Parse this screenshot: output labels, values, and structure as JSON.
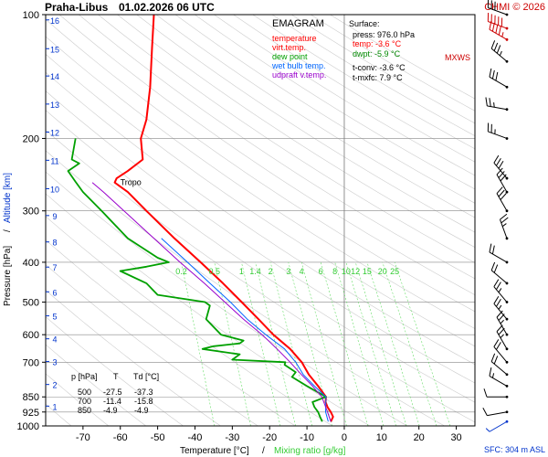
{
  "header": {
    "station": "Praha-Libus",
    "datetime": "01.02.2026 06 UTC",
    "copyright": "CHMI © 2026"
  },
  "legend": {
    "title": "EMAGRAM",
    "items": [
      {
        "label": "temperature",
        "color": "#ff0000"
      },
      {
        "label": "virt.temp.",
        "color": "#ff0000"
      },
      {
        "label": "dew point",
        "color": "#00a000"
      },
      {
        "label": "wet bulb temp.",
        "color": "#0066ff"
      },
      {
        "label": "udpraft v.temp.",
        "color": "#9900cc"
      }
    ]
  },
  "surface": {
    "title": "Surface:",
    "lines": [
      {
        "text": "press: 976.0 hPa",
        "color": "#000000"
      },
      {
        "text": "temp: -3.6 °C",
        "color": "#ff0000"
      },
      {
        "text": "dwpt: -5.9 °C",
        "color": "#008800"
      },
      {
        "text": "t-conv: -3.6 °C",
        "color": "#000000"
      },
      {
        "text": "t-mxfc: 7.9 °C",
        "color": "#000000"
      }
    ]
  },
  "table": {
    "headers": [
      "p [hPa]",
      "T",
      "Td [°C]"
    ],
    "rows": [
      [
        "500",
        "-27.5",
        "-37.3"
      ],
      [
        "700",
        "-11.4",
        "-15.8"
      ],
      [
        "850",
        "-4.9",
        "-4.9"
      ]
    ]
  },
  "labels": {
    "tropo": "Tropo",
    "mxws": "MXWS",
    "sfc": "SFC: 304 m ASL"
  },
  "chart_data": {
    "type": "line",
    "xlabel": "Temperature [°C]",
    "xlabel_sep": "/",
    "xlabel2": "Mixing ratio [g/kg]",
    "ylabel": "Pressure [hPa]",
    "ylabel_sep": "/",
    "ylabel2": "Altitude [km]",
    "xlim": [
      -80,
      35
    ],
    "ylim": [
      1000,
      100
    ],
    "y_scale": "log",
    "x_ticks": [
      -70,
      -60,
      -50,
      -40,
      -30,
      -20,
      -10,
      0,
      10,
      20,
      30
    ],
    "y_ticks": [
      100,
      200,
      300,
      400,
      500,
      600,
      700,
      850,
      925,
      1000
    ],
    "altitude_ticks": [
      {
        "km": 1,
        "p": 895
      },
      {
        "km": 2,
        "p": 793
      },
      {
        "km": 3,
        "p": 697
      },
      {
        "km": 4,
        "p": 614
      },
      {
        "km": 5,
        "p": 540
      },
      {
        "km": 6,
        "p": 472
      },
      {
        "km": 7,
        "p": 411
      },
      {
        "km": 8,
        "p": 357
      },
      {
        "km": 9,
        "p": 308
      },
      {
        "km": 10,
        "p": 265
      },
      {
        "km": 11,
        "p": 226
      },
      {
        "km": 12,
        "p": 193
      },
      {
        "km": 13,
        "p": 165
      },
      {
        "km": 14,
        "p": 141
      },
      {
        "km": 15,
        "p": 121
      },
      {
        "km": 16,
        "p": 103
      }
    ],
    "mixing_ratio_lines": [
      0.2,
      0.5,
      1,
      1.4,
      2,
      3,
      4,
      6,
      8,
      10,
      12,
      15,
      20,
      25
    ],
    "series": [
      {
        "name": "temperature",
        "color": "#ff0000",
        "points": [
          [
            976,
            -3.6
          ],
          [
            950,
            -3
          ],
          [
            925,
            -3.6
          ],
          [
            900,
            -4.5
          ],
          [
            875,
            -5
          ],
          [
            850,
            -4.9
          ],
          [
            800,
            -7
          ],
          [
            750,
            -9.5
          ],
          [
            700,
            -11.4
          ],
          [
            650,
            -14.5
          ],
          [
            600,
            -19
          ],
          [
            550,
            -23
          ],
          [
            500,
            -27.5
          ],
          [
            450,
            -32.5
          ],
          [
            400,
            -38.5
          ],
          [
            350,
            -45.5
          ],
          [
            300,
            -53
          ],
          [
            270,
            -58
          ],
          [
            256,
            -61.5
          ],
          [
            250,
            -61
          ],
          [
            240,
            -58
          ],
          [
            225,
            -54
          ],
          [
            200,
            -54.5
          ],
          [
            180,
            -53
          ],
          [
            150,
            -52
          ],
          [
            120,
            -51.5
          ],
          [
            100,
            -51
          ]
        ]
      },
      {
        "name": "dew point",
        "color": "#00a000",
        "points": [
          [
            976,
            -5.9
          ],
          [
            950,
            -6.5
          ],
          [
            925,
            -7
          ],
          [
            900,
            -8
          ],
          [
            875,
            -8.5
          ],
          [
            850,
            -4.9
          ],
          [
            800,
            -10
          ],
          [
            760,
            -14
          ],
          [
            740,
            -13
          ],
          [
            710,
            -16
          ],
          [
            700,
            -15.8
          ],
          [
            690,
            -30
          ],
          [
            670,
            -28
          ],
          [
            650,
            -38
          ],
          [
            640,
            -35
          ],
          [
            630,
            -28
          ],
          [
            620,
            -27
          ],
          [
            600,
            -33
          ],
          [
            550,
            -37
          ],
          [
            510,
            -36
          ],
          [
            500,
            -37.3
          ],
          [
            480,
            -50
          ],
          [
            450,
            -53
          ],
          [
            420,
            -60
          ],
          [
            410,
            -53
          ],
          [
            400,
            -47
          ],
          [
            390,
            -50
          ],
          [
            350,
            -58
          ],
          [
            300,
            -65
          ],
          [
            270,
            -70
          ],
          [
            255,
            -72
          ],
          [
            240,
            -74
          ],
          [
            230,
            -71
          ],
          [
            225,
            -73
          ],
          [
            200,
            -72
          ]
        ]
      },
      {
        "name": "wet bulb temp.",
        "color": "#0066ff",
        "points": [
          [
            976,
            -4.3
          ],
          [
            925,
            -5
          ],
          [
            850,
            -4.9
          ],
          [
            800,
            -8
          ],
          [
            750,
            -11
          ],
          [
            700,
            -13
          ],
          [
            650,
            -16
          ],
          [
            600,
            -21
          ],
          [
            550,
            -26
          ],
          [
            500,
            -30.5
          ],
          [
            450,
            -36
          ],
          [
            400,
            -42
          ],
          [
            350,
            -49
          ]
        ]
      },
      {
        "name": "udpraft v.temp.",
        "color": "#9900cc",
        "points": [
          [
            976,
            -3.6
          ],
          [
            925,
            -4.5
          ],
          [
            850,
            -6
          ],
          [
            800,
            -8.5
          ],
          [
            750,
            -11.5
          ],
          [
            700,
            -14.5
          ],
          [
            650,
            -18
          ],
          [
            600,
            -22
          ],
          [
            550,
            -27
          ],
          [
            500,
            -32
          ],
          [
            450,
            -37.5
          ],
          [
            400,
            -44
          ],
          [
            350,
            -51
          ],
          [
            300,
            -59
          ],
          [
            270,
            -64.5
          ],
          [
            256,
            -67.5
          ]
        ]
      }
    ],
    "wind_barbs": [
      {
        "p": 976,
        "dir": 240,
        "spd": 5
      },
      {
        "p": 925,
        "dir": 260,
        "spd": 10
      },
      {
        "p": 850,
        "dir": 270,
        "spd": 10
      },
      {
        "p": 800,
        "dir": 300,
        "spd": 15
      },
      {
        "p": 750,
        "dir": 310,
        "spd": 20
      },
      {
        "p": 700,
        "dir": 320,
        "spd": 20
      },
      {
        "p": 650,
        "dir": 330,
        "spd": 25
      },
      {
        "p": 600,
        "dir": 330,
        "spd": 25
      },
      {
        "p": 550,
        "dir": 320,
        "spd": 25
      },
      {
        "p": 500,
        "dir": 320,
        "spd": 25
      },
      {
        "p": 450,
        "dir": 310,
        "spd": 20
      },
      {
        "p": 400,
        "dir": 300,
        "spd": 20
      },
      {
        "p": 350,
        "dir": 340,
        "spd": 25
      },
      {
        "p": 300,
        "dir": 330,
        "spd": 30
      },
      {
        "p": 270,
        "dir": 330,
        "spd": 30
      },
      {
        "p": 250,
        "dir": 320,
        "spd": 30
      },
      {
        "p": 200,
        "dir": 290,
        "spd": 25
      },
      {
        "p": 170,
        "dir": 280,
        "spd": 25
      },
      {
        "p": 150,
        "dir": 300,
        "spd": 30
      },
      {
        "p": 130,
        "dir": 310,
        "spd": 35
      },
      {
        "p": 115,
        "dir": 300,
        "spd": 45
      },
      {
        "p": 108,
        "dir": 290,
        "spd": 50
      },
      {
        "p": 100,
        "dir": 290,
        "spd": 30
      }
    ]
  }
}
